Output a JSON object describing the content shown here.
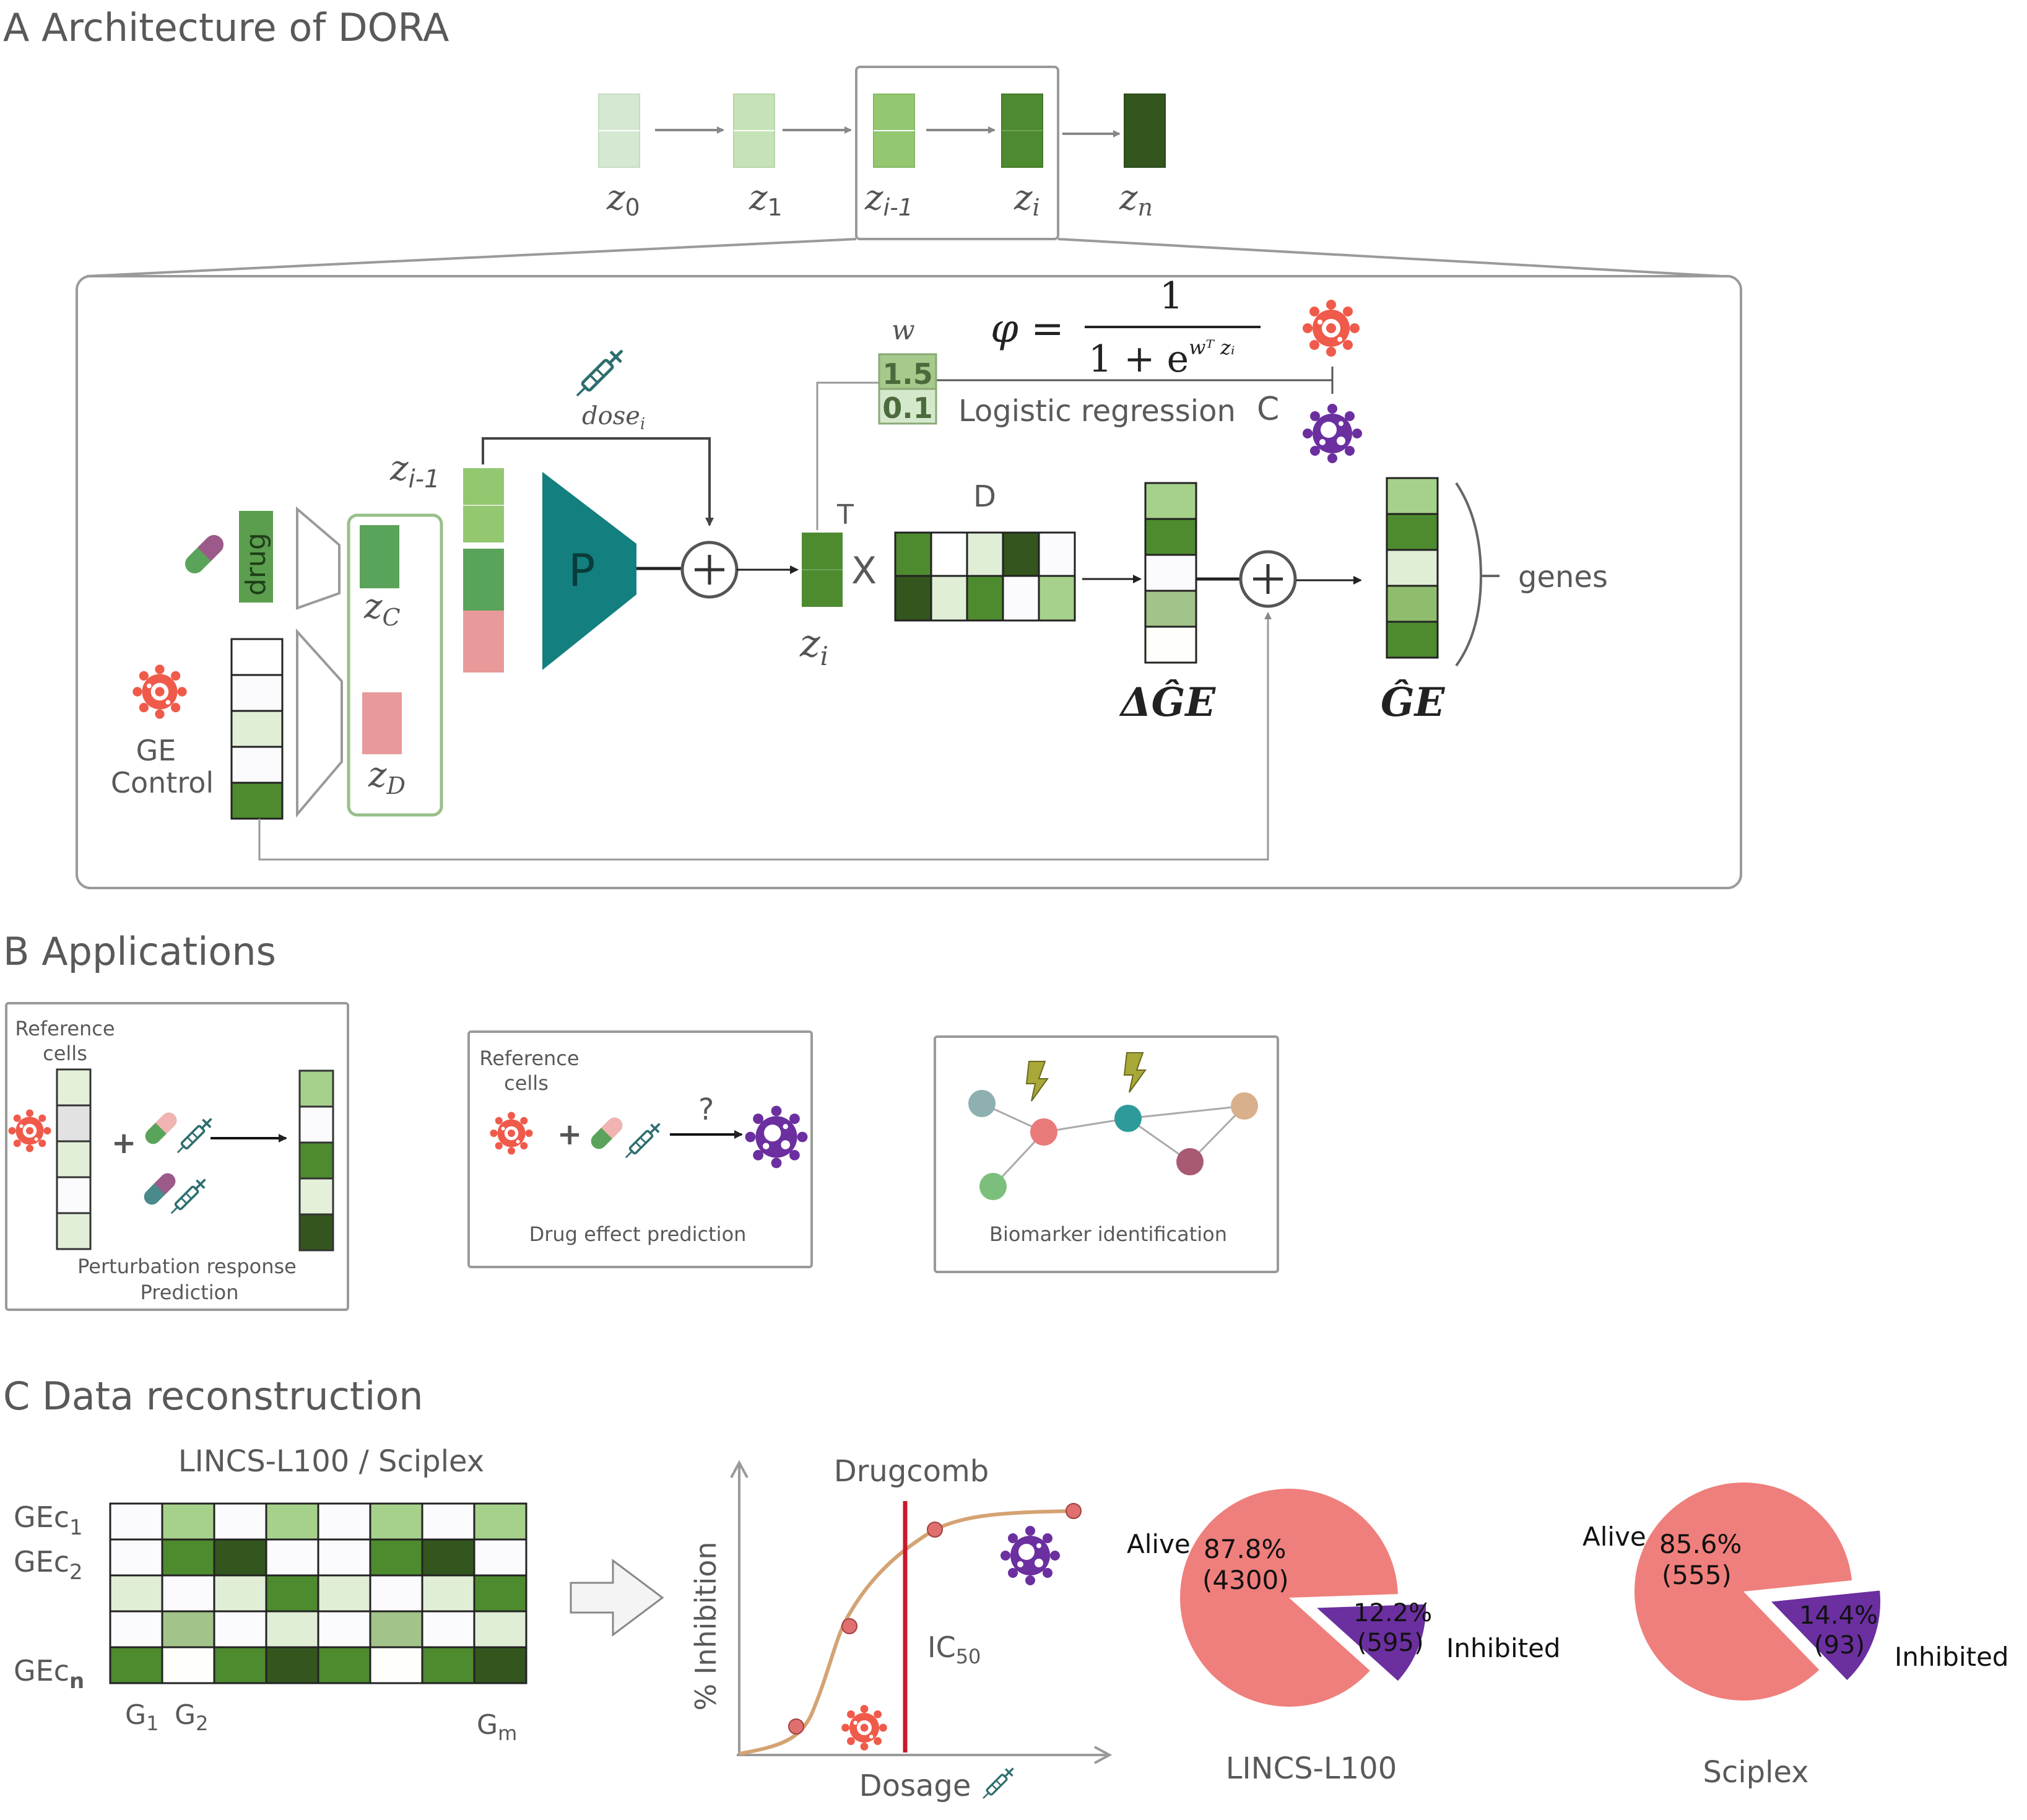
{
  "sections": {
    "a_title": "A Architecture of DORA",
    "b_title": "B Applications",
    "c_title": "C Data reconstruction"
  },
  "architecture": {
    "chain": [
      "z",
      "z",
      "z",
      "z",
      "z"
    ],
    "chain_subs": [
      "0",
      "1",
      "i-1",
      "i",
      "n"
    ],
    "z_prev_sub": "i-1",
    "w_label": "w",
    "w_values": [
      "1.5",
      "0.1"
    ],
    "phi": "φ =",
    "formula_num": "1",
    "formula_den": "1 + e",
    "formula_exp": "wᵀ zᵢ",
    "logistic_label": "Logistic regression",
    "c_label": "C",
    "dose_label": "dose",
    "dose_sub": "i",
    "drug_label": "drug",
    "zc_label": "z",
    "zc_sub": "C",
    "zd_label": "z",
    "zd_sub": "D",
    "p_label": "P",
    "plus": "+",
    "t_label": "T",
    "d_label": "D",
    "x_label": "X",
    "zi_label": "z",
    "zi_sub": "i",
    "delta_ge": "ΔĜE",
    "ge_hat": "ĜE",
    "genes_label": "genes",
    "ge_control": [
      "GE",
      "Control"
    ]
  },
  "applications": [
    {
      "ref": [
        "Reference",
        "cells"
      ],
      "caption": [
        "Perturbation response",
        "Prediction"
      ]
    },
    {
      "ref": [
        "Reference",
        "cells"
      ],
      "question": "?",
      "caption": [
        "Drug effect prediction"
      ]
    },
    {
      "caption": [
        "Biomarker identification"
      ]
    }
  ],
  "reconstruction": {
    "heatmap_title": "LINCS-L100 / Sciplex",
    "row_labels": [
      "GEc",
      "GEc",
      "GEc"
    ],
    "row_subs": [
      "1",
      "2",
      "n"
    ],
    "col_labels": [
      "G",
      "G",
      "G"
    ],
    "col_subs": [
      "1",
      "2",
      "m"
    ],
    "curve_title": "Drugcomb",
    "ylabel": "% Inhibition",
    "xlabel": "Dosage",
    "ic50": "IC",
    "ic50_sub": "50"
  },
  "chart_data": [
    {
      "type": "pie",
      "title": "LINCS-L100",
      "slices": [
        {
          "name": "Alive",
          "percent": 87.8,
          "count": 4300,
          "pct_label": "87.8%",
          "count_label": "(4300)",
          "color": "#ef7f7c"
        },
        {
          "name": "Inhibited",
          "percent": 12.2,
          "count": 595,
          "pct_label": "12.2%",
          "count_label": "(595)",
          "color": "#6b2fa0"
        }
      ]
    },
    {
      "type": "pie",
      "title": "Sciplex",
      "slices": [
        {
          "name": "Alive",
          "percent": 85.6,
          "count": 555,
          "pct_label": "85.6%",
          "count_label": "(555)",
          "color": "#ef7f7c"
        },
        {
          "name": "Inhibited",
          "percent": 14.4,
          "count": 93,
          "pct_label": "14.4%",
          "count_label": "(93)",
          "color": "#6b2fa0"
        }
      ]
    }
  ],
  "colors": {
    "green_dark": "#33561e",
    "green_mid": "#4e8b2f",
    "green_light": "#9fd17f",
    "green_pale": "#e0efd6",
    "teal": "#137f7f",
    "red": "#e85a4f",
    "purple": "#6b2fa0",
    "pink": "#e8999a",
    "dose_red": "#c8192a"
  }
}
